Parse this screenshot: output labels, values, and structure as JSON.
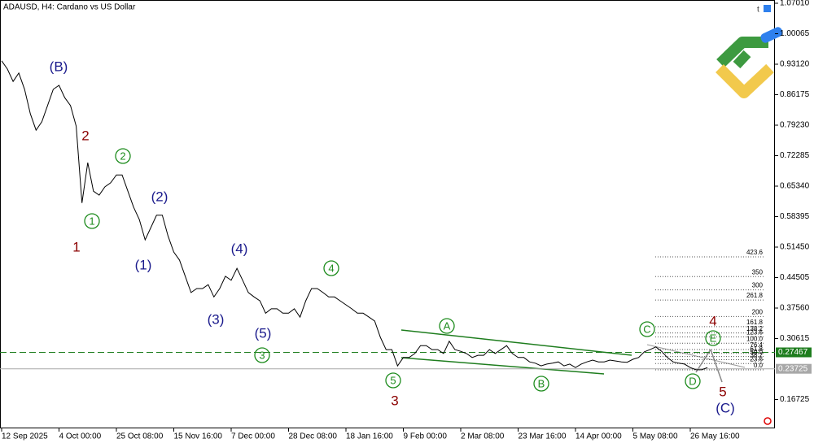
{
  "chart_data": {
    "type": "line",
    "title": "ADAUSD, H4:  Cardano vs US Dollar",
    "color": "#000000",
    "categories": [
      "12 Sep 2025",
      null,
      null,
      null,
      null,
      null,
      null,
      null,
      null,
      null,
      "4 Oct 00:00",
      null,
      null,
      null,
      null,
      null,
      null,
      null,
      null,
      null,
      "25 Oct 08:00",
      null,
      null,
      null,
      null,
      null,
      null,
      null,
      null,
      null,
      "15 Nov 16:00",
      null,
      null,
      null,
      null,
      null,
      null,
      null,
      null,
      null,
      "7 Dec 00:00",
      null,
      null,
      null,
      null,
      null,
      null,
      null,
      null,
      null,
      "28 Dec 08:00",
      null,
      null,
      null,
      null,
      null,
      null,
      null,
      null,
      null,
      "18 Jan 16:00",
      null,
      null,
      null,
      null,
      null,
      null,
      null,
      null,
      null,
      "9 Feb 00:00",
      null,
      null,
      null,
      null,
      null,
      null,
      null,
      null,
      null,
      "2 Mar 08:00",
      null,
      null,
      null,
      null,
      null,
      null,
      null,
      null,
      null,
      "23 Mar 16:00",
      null,
      null,
      null,
      null,
      null,
      null,
      null,
      null,
      null,
      "14 Apr 00:00",
      null,
      null,
      null,
      null,
      null,
      null,
      null,
      null,
      null,
      "5 May 08:00",
      null,
      null,
      null,
      null,
      null,
      null,
      null,
      null,
      null,
      "26 May 16:00",
      null,
      null,
      null
    ],
    "values": [
      0.939,
      0.92,
      0.892,
      0.911,
      0.874,
      0.818,
      0.781,
      0.8,
      0.837,
      0.874,
      0.883,
      0.855,
      0.837,
      0.79,
      0.615,
      0.707,
      0.642,
      0.633,
      0.652,
      0.661,
      0.679,
      0.679,
      0.642,
      0.605,
      0.577,
      0.531,
      0.559,
      0.587,
      0.587,
      0.54,
      0.503,
      0.485,
      0.448,
      0.411,
      0.42,
      0.42,
      0.429,
      0.401,
      0.42,
      0.448,
      0.439,
      0.466,
      0.439,
      0.411,
      0.401,
      0.392,
      0.364,
      0.374,
      0.374,
      0.364,
      0.364,
      0.374,
      0.355,
      0.392,
      0.42,
      0.42,
      0.411,
      0.401,
      0.401,
      0.392,
      0.383,
      0.374,
      0.364,
      0.364,
      0.355,
      0.346,
      0.309,
      0.281,
      0.281,
      0.244,
      0.263,
      0.263,
      0.272,
      0.29,
      0.29,
      0.281,
      0.281,
      0.272,
      0.3,
      0.281,
      0.277,
      0.272,
      0.263,
      0.268,
      0.268,
      0.281,
      0.272,
      0.281,
      0.29,
      0.272,
      0.263,
      0.263,
      0.253,
      0.25,
      0.244,
      0.248,
      0.25,
      0.253,
      0.244,
      0.248,
      0.24,
      0.248,
      0.253,
      0.257,
      0.253,
      0.253,
      0.257,
      0.255,
      0.253,
      0.252,
      0.259,
      0.263,
      0.276,
      0.281,
      0.287,
      0.277,
      0.263,
      0.253,
      0.25,
      0.248,
      0.24,
      0.235,
      0.235,
      0.24
    ],
    "ylim": [
      0.1015,
      1.0775
    ],
    "yticks": [
      {
        "value": 1.0701,
        "label": "1.07010"
      },
      1.00065,
      {
        "value": 0.9312,
        "label": "0.93120"
      },
      0.86175,
      {
        "value": 0.7923,
        "label": "0.79230"
      },
      0.72285,
      {
        "value": 0.6534,
        "label": "0.65340"
      },
      0.58395,
      {
        "value": 0.5145,
        "label": "0.51450"
      },
      0.44505,
      {
        "value": 0.3756,
        "label": "0.37560"
      },
      0.30615,
      0.16725
    ],
    "grid": false,
    "price_lines": [
      {
        "value": 0.27467,
        "color": "#1e7d1e",
        "style": "dashed"
      },
      {
        "value": 0.23725,
        "color": "#a8a8a8",
        "style": "solid"
      }
    ],
    "fib_levels": [
      423.6,
      350,
      300,
      261.8,
      200,
      161.8,
      138.2,
      123.6,
      {
        "value": 100,
        "label": "100.0"
      },
      76.4,
      61.8,
      {
        "value": 50,
        "label": "50.0"
      },
      38.2,
      23.6,
      {
        "value": 0,
        "label": "0.0"
      }
    ],
    "wave_labels": [
      {
        "text": "(B)",
        "color": "#1a1a8c",
        "circled": false
      },
      {
        "text": "2",
        "color": "#8b0000",
        "circled": false
      },
      {
        "text": "1",
        "color": "#8b0000",
        "circled": false
      },
      {
        "text": "1",
        "color": "#1e8c1e",
        "circled": true
      },
      {
        "text": "2",
        "color": "#1e8c1e",
        "circled": true
      },
      {
        "text": "(2)",
        "color": "#1a1a8c",
        "circled": false
      },
      {
        "text": "(1)",
        "color": "#1a1a8c",
        "circled": false
      },
      {
        "text": "(4)",
        "color": "#1a1a8c",
        "circled": false
      },
      {
        "text": "(3)",
        "color": "#1a1a8c",
        "circled": false
      },
      {
        "text": "(5)",
        "color": "#1a1a8c",
        "circled": false
      },
      {
        "text": "3",
        "color": "#1e8c1e",
        "circled": true
      },
      {
        "text": "4",
        "color": "#1e8c1e",
        "circled": true
      },
      {
        "text": "5",
        "color": "#1e8c1e",
        "circled": true
      },
      {
        "text": "3",
        "color": "#8b0000",
        "circled": false
      },
      {
        "text": "A",
        "color": "#1e8c1e",
        "circled": true
      },
      {
        "text": "B",
        "color": "#1e8c1e",
        "circled": true
      },
      {
        "text": "C",
        "color": "#1e8c1e",
        "circled": true
      },
      {
        "text": "D",
        "color": "#1e8c1e",
        "circled": true
      },
      {
        "text": "E",
        "color": "#1e8c1e",
        "circled": true
      },
      {
        "text": "4",
        "color": "#8b0000",
        "circled": false
      },
      {
        "text": "5",
        "color": "#8b0000",
        "circled": false
      },
      {
        "text": "(C)",
        "color": "#1a1a8c",
        "circled": false
      }
    ]
  }
}
